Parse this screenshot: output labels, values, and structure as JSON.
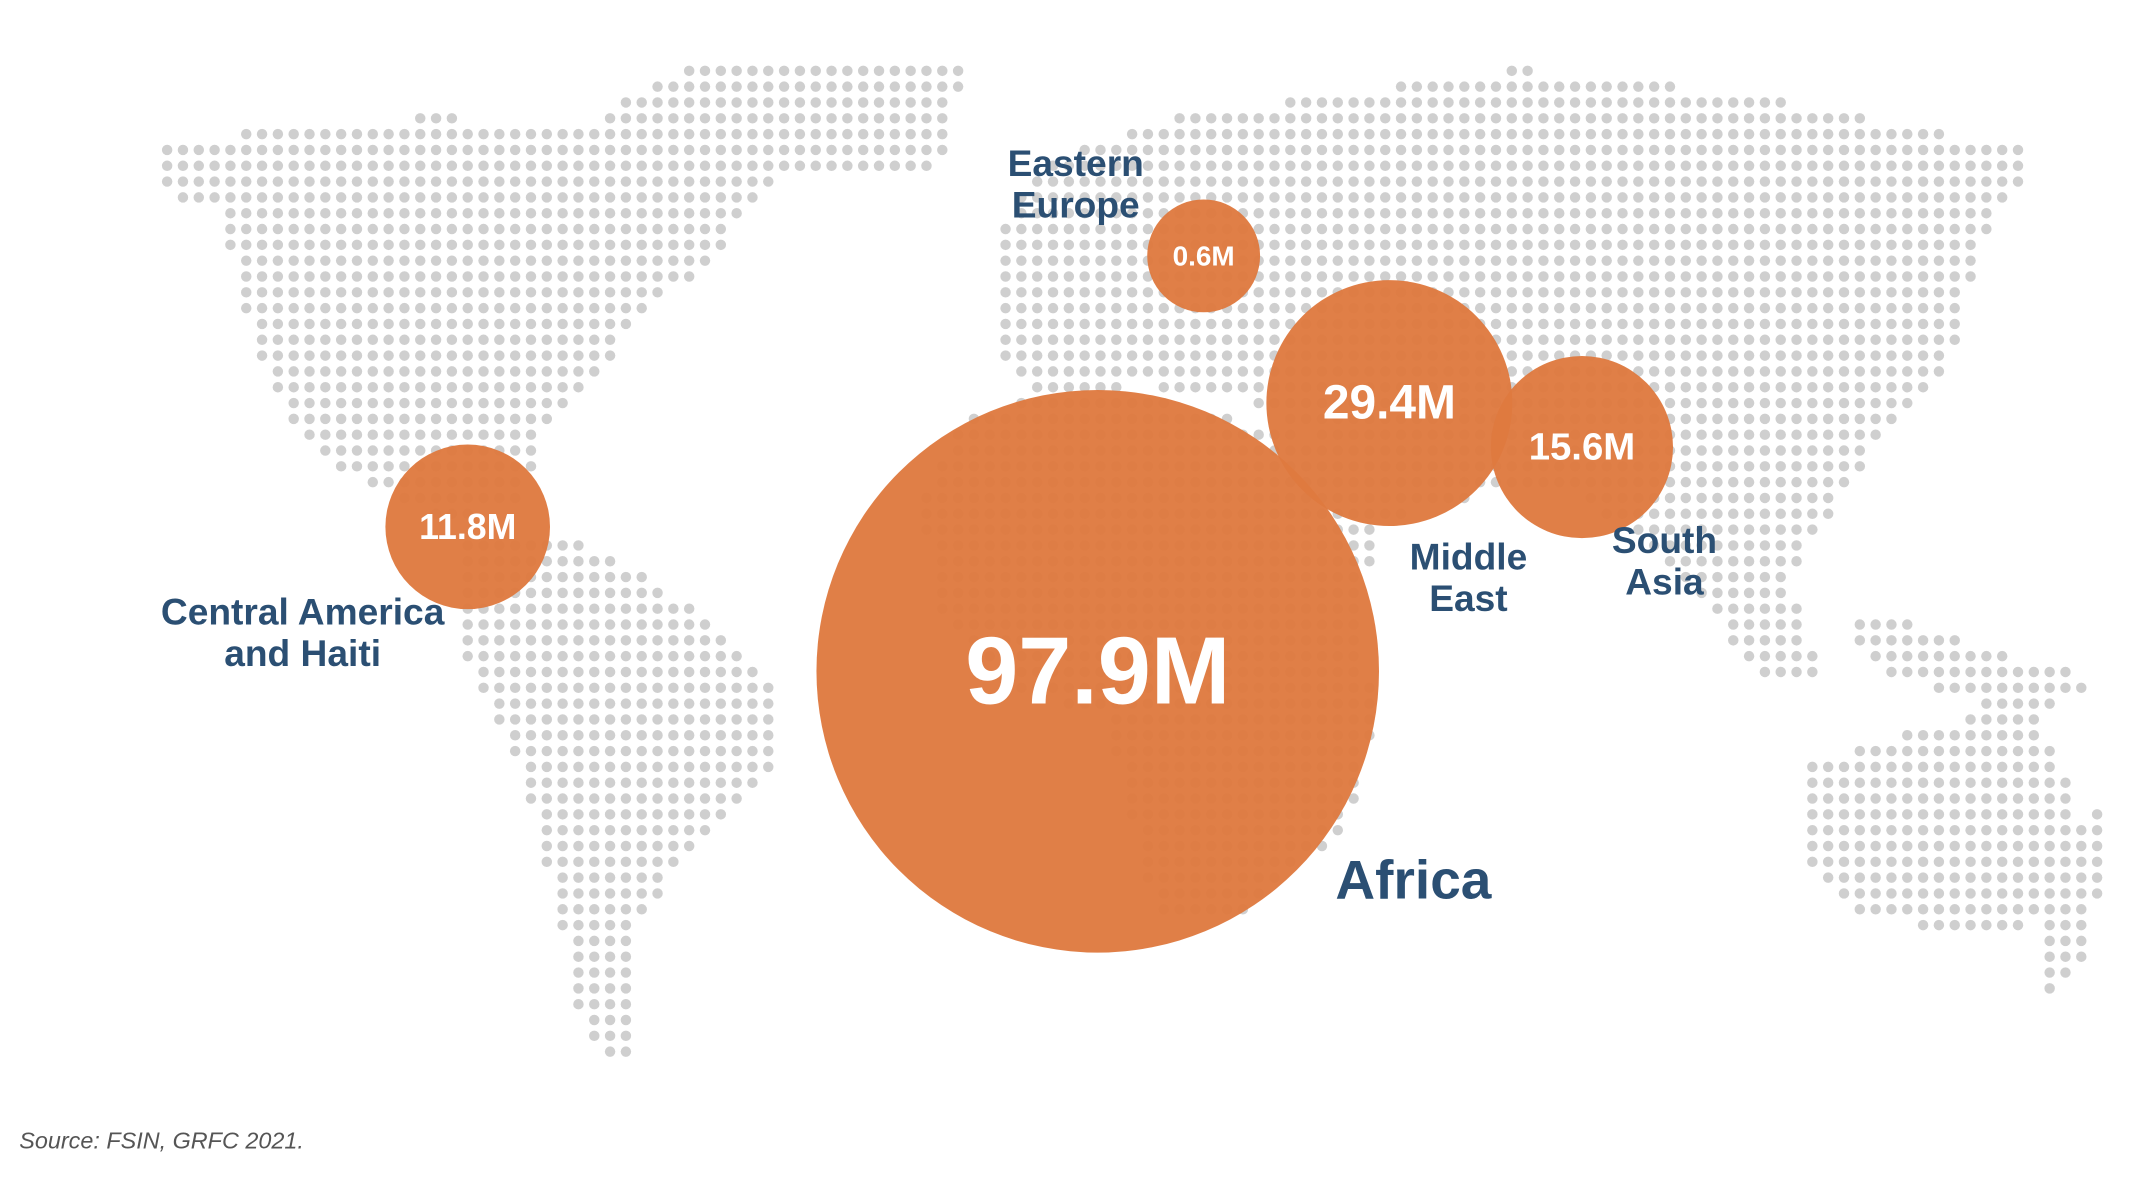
{
  "chart_data": {
    "type": "bubble",
    "categories": [
      "Central America and Haiti",
      "Africa",
      "Eastern Europe",
      "Middle East",
      "South Asia"
    ],
    "values": [
      11.8,
      97.9,
      0.6,
      29.4,
      15.6
    ],
    "value_labels": [
      "11.8M",
      "97.9M",
      "0.6M",
      "29.4M",
      "15.6M"
    ],
    "color": "#df7a3f",
    "source": "Source: FSIN, GRFC 2021."
  }
}
